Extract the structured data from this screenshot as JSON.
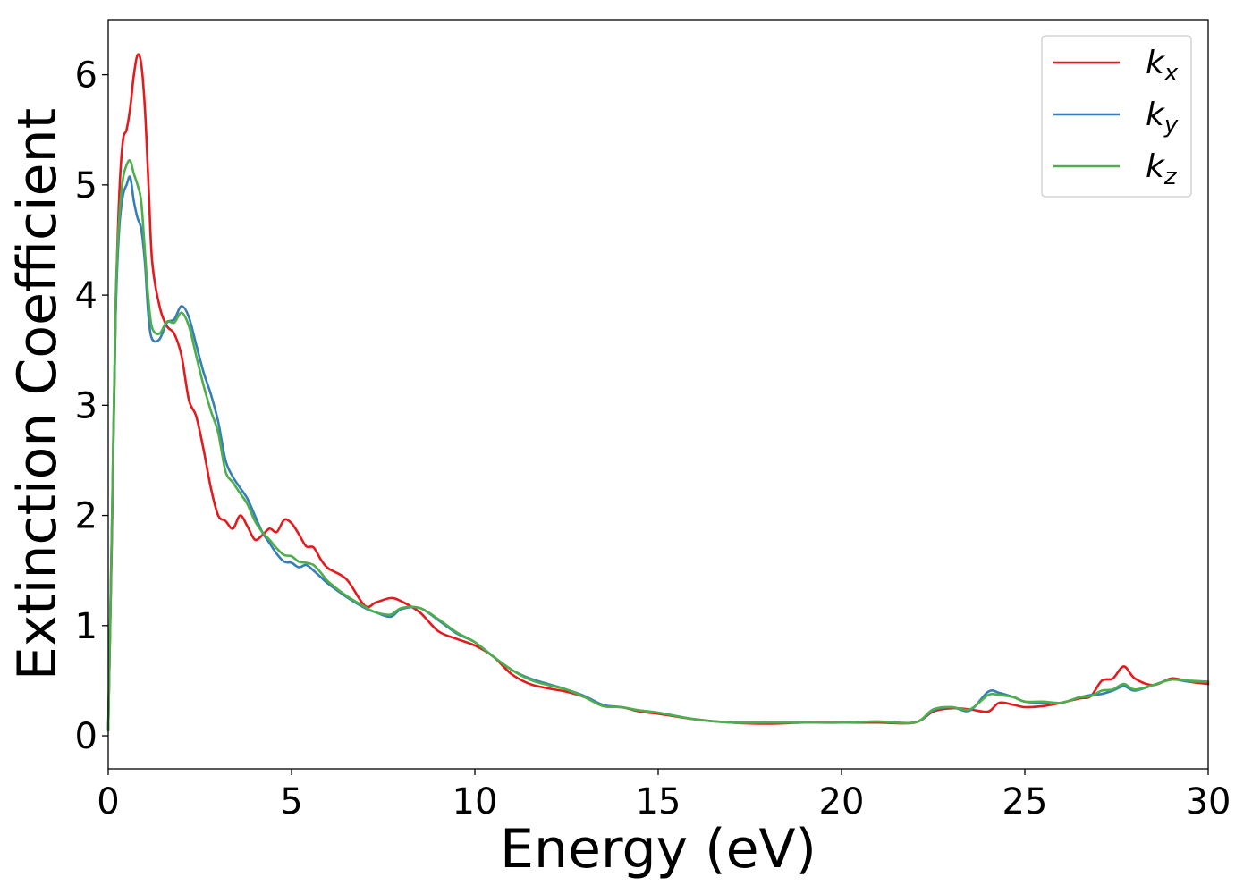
{
  "chart_data": {
    "type": "line",
    "title": "",
    "xlabel": "Energy (eV)",
    "ylabel": "Extinction Coefficient",
    "xlim": [
      0,
      30
    ],
    "ylim": [
      -0.3,
      6.5
    ],
    "xticks": [
      0,
      5,
      10,
      15,
      20,
      25,
      30
    ],
    "xtick_labels": [
      "0",
      "5",
      "10",
      "15",
      "20",
      "25",
      "30"
    ],
    "yticks": [
      0,
      1,
      2,
      3,
      4,
      5,
      6
    ],
    "ytick_labels": [
      "0",
      "1",
      "2",
      "3",
      "4",
      "5",
      "6"
    ],
    "grid": false,
    "legend_position": "top-right",
    "series": [
      {
        "name": "k",
        "subscript": "x",
        "color": "#e41a1c",
        "x": [
          0,
          0.1,
          0.2,
          0.3,
          0.4,
          0.5,
          0.6,
          0.7,
          0.8,
          0.9,
          1.0,
          1.1,
          1.2,
          1.4,
          1.6,
          1.8,
          2.0,
          2.2,
          2.4,
          2.6,
          2.8,
          3.0,
          3.2,
          3.4,
          3.6,
          3.8,
          4.0,
          4.2,
          4.4,
          4.6,
          4.8,
          5.0,
          5.2,
          5.4,
          5.6,
          5.8,
          6.0,
          6.5,
          7.0,
          7.3,
          7.7,
          8.0,
          8.5,
          9.0,
          9.5,
          10.0,
          10.5,
          11.0,
          11.5,
          12.0,
          12.5,
          13.0,
          13.5,
          14.0,
          14.5,
          15.0,
          16.0,
          17.0,
          18.0,
          19.0,
          20.0,
          21.0,
          22.0,
          22.5,
          23.0,
          23.5,
          24.0,
          24.3,
          24.7,
          25.0,
          25.5,
          26.0,
          26.5,
          26.8,
          27.1,
          27.4,
          27.7,
          28.0,
          28.5,
          29.0,
          29.5,
          30.0
        ],
        "values": [
          0.05,
          1.8,
          3.8,
          4.9,
          5.4,
          5.5,
          5.7,
          6.0,
          6.18,
          6.1,
          5.7,
          5.0,
          4.3,
          3.9,
          3.72,
          3.65,
          3.45,
          3.05,
          2.9,
          2.6,
          2.25,
          2.0,
          1.95,
          1.88,
          2.0,
          1.9,
          1.78,
          1.82,
          1.88,
          1.85,
          1.96,
          1.93,
          1.83,
          1.72,
          1.71,
          1.6,
          1.52,
          1.42,
          1.18,
          1.21,
          1.25,
          1.22,
          1.12,
          0.95,
          0.88,
          0.82,
          0.72,
          0.56,
          0.47,
          0.43,
          0.4,
          0.35,
          0.27,
          0.26,
          0.22,
          0.2,
          0.15,
          0.12,
          0.11,
          0.12,
          0.12,
          0.12,
          0.12,
          0.22,
          0.25,
          0.24,
          0.22,
          0.3,
          0.28,
          0.26,
          0.27,
          0.3,
          0.34,
          0.36,
          0.5,
          0.52,
          0.63,
          0.52,
          0.46,
          0.52,
          0.49,
          0.47
        ]
      },
      {
        "name": "k",
        "subscript": "y",
        "color": "#377eb8",
        "x": [
          0,
          0.1,
          0.2,
          0.3,
          0.4,
          0.5,
          0.6,
          0.7,
          0.8,
          0.9,
          1.0,
          1.1,
          1.2,
          1.4,
          1.6,
          1.8,
          2.0,
          2.2,
          2.4,
          2.6,
          2.8,
          3.0,
          3.2,
          3.4,
          3.6,
          3.8,
          4.0,
          4.2,
          4.4,
          4.6,
          4.8,
          5.0,
          5.2,
          5.4,
          5.6,
          5.8,
          6.0,
          6.5,
          7.0,
          7.3,
          7.7,
          8.0,
          8.5,
          9.0,
          9.5,
          10.0,
          10.5,
          11.0,
          11.5,
          12.0,
          12.5,
          13.0,
          13.5,
          14.0,
          14.5,
          15.0,
          16.0,
          17.0,
          18.0,
          19.0,
          20.0,
          21.0,
          22.0,
          22.5,
          23.0,
          23.5,
          24.0,
          24.3,
          24.7,
          25.0,
          25.5,
          26.0,
          26.5,
          26.8,
          27.1,
          27.4,
          27.7,
          28.0,
          28.5,
          29.0,
          29.5,
          30.0
        ],
        "values": [
          0.05,
          1.9,
          3.8,
          4.6,
          4.9,
          5.0,
          5.07,
          4.85,
          4.7,
          4.6,
          4.3,
          3.8,
          3.6,
          3.6,
          3.75,
          3.78,
          3.9,
          3.8,
          3.55,
          3.3,
          3.1,
          2.85,
          2.5,
          2.35,
          2.25,
          2.15,
          2.0,
          1.85,
          1.75,
          1.65,
          1.58,
          1.57,
          1.53,
          1.55,
          1.5,
          1.44,
          1.38,
          1.26,
          1.16,
          1.12,
          1.08,
          1.15,
          1.16,
          1.05,
          0.93,
          0.85,
          0.72,
          0.6,
          0.52,
          0.47,
          0.42,
          0.36,
          0.28,
          0.26,
          0.23,
          0.21,
          0.15,
          0.12,
          0.12,
          0.12,
          0.12,
          0.13,
          0.12,
          0.23,
          0.26,
          0.23,
          0.4,
          0.39,
          0.35,
          0.31,
          0.3,
          0.3,
          0.35,
          0.37,
          0.38,
          0.41,
          0.45,
          0.41,
          0.46,
          0.51,
          0.49,
          0.49
        ]
      },
      {
        "name": "k",
        "subscript": "z",
        "color": "#4daf4a",
        "x": [
          0,
          0.1,
          0.2,
          0.3,
          0.4,
          0.5,
          0.6,
          0.7,
          0.8,
          0.9,
          1.0,
          1.1,
          1.2,
          1.4,
          1.6,
          1.8,
          2.0,
          2.2,
          2.4,
          2.6,
          2.8,
          3.0,
          3.2,
          3.4,
          3.6,
          3.8,
          4.0,
          4.2,
          4.4,
          4.6,
          4.8,
          5.0,
          5.2,
          5.4,
          5.6,
          5.8,
          6.0,
          6.5,
          7.0,
          7.3,
          7.7,
          8.0,
          8.5,
          9.0,
          9.5,
          10.0,
          10.5,
          11.0,
          11.5,
          12.0,
          12.5,
          13.0,
          13.5,
          14.0,
          14.5,
          15.0,
          16.0,
          17.0,
          18.0,
          19.0,
          20.0,
          21.0,
          22.0,
          22.5,
          23.0,
          23.5,
          24.0,
          24.3,
          24.7,
          25.0,
          25.5,
          26.0,
          26.5,
          26.8,
          27.1,
          27.4,
          27.7,
          28.0,
          28.5,
          29.0,
          29.5,
          30.0
        ],
        "values": [
          0.05,
          1.9,
          3.9,
          4.7,
          5.05,
          5.18,
          5.22,
          5.1,
          5.0,
          4.85,
          4.4,
          3.95,
          3.7,
          3.65,
          3.76,
          3.75,
          3.84,
          3.72,
          3.45,
          3.18,
          2.95,
          2.75,
          2.4,
          2.3,
          2.2,
          2.1,
          1.95,
          1.85,
          1.78,
          1.7,
          1.64,
          1.63,
          1.58,
          1.57,
          1.55,
          1.48,
          1.4,
          1.27,
          1.17,
          1.12,
          1.1,
          1.16,
          1.16,
          1.06,
          0.94,
          0.85,
          0.72,
          0.6,
          0.51,
          0.46,
          0.42,
          0.35,
          0.27,
          0.26,
          0.23,
          0.21,
          0.15,
          0.12,
          0.12,
          0.12,
          0.12,
          0.13,
          0.12,
          0.24,
          0.26,
          0.24,
          0.37,
          0.37,
          0.35,
          0.31,
          0.31,
          0.3,
          0.35,
          0.36,
          0.41,
          0.42,
          0.47,
          0.42,
          0.46,
          0.51,
          0.5,
          0.49
        ]
      }
    ]
  }
}
